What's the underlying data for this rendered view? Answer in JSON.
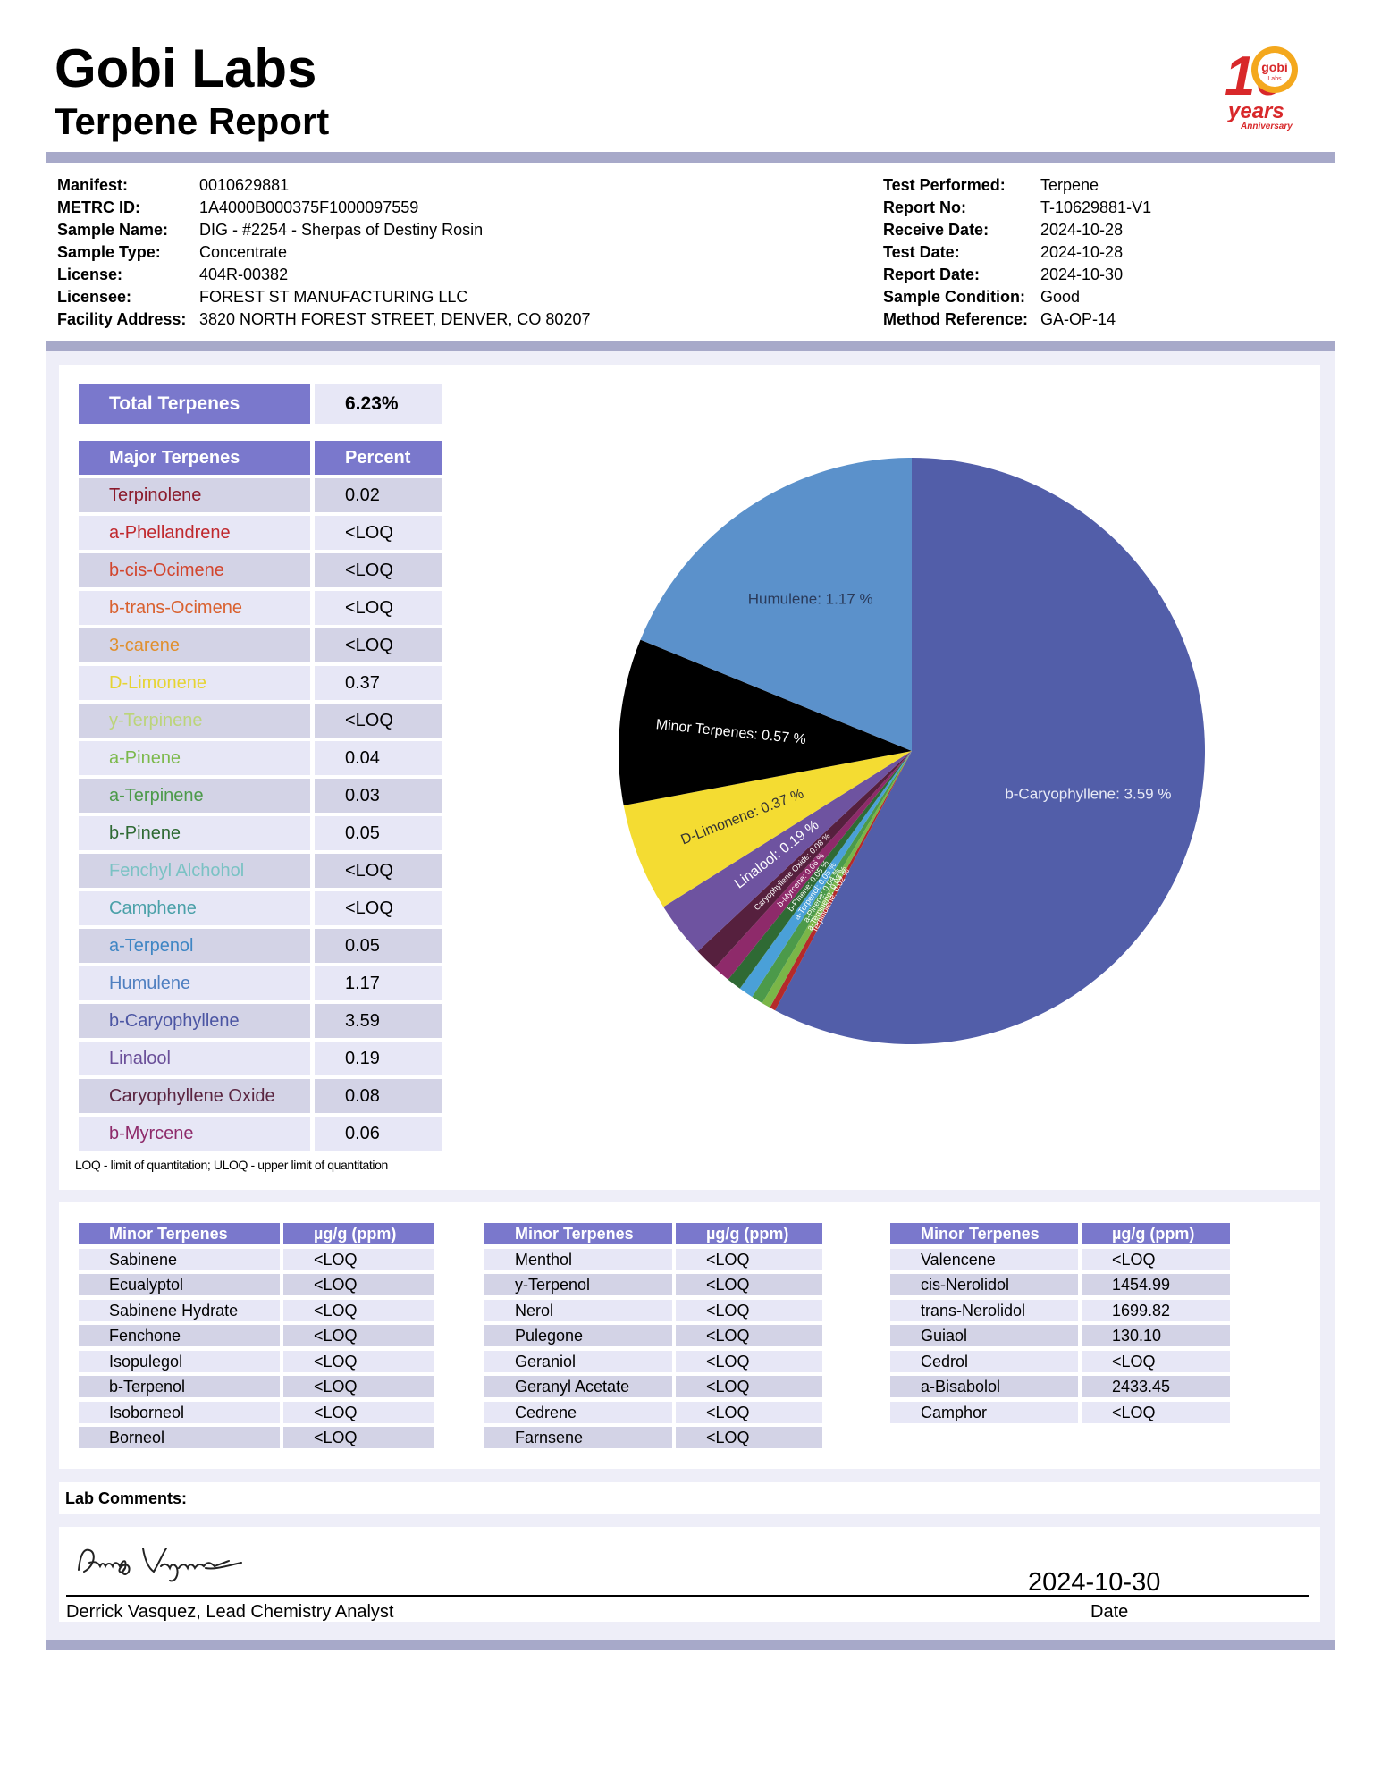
{
  "header": {
    "title": "Gobi Labs",
    "subtitle": "Terpene Report"
  },
  "logo": {
    "year_digit": "10",
    "badge_text": "gobi",
    "badge_subtext": "Labs",
    "line1": "years",
    "line2": "Anniversary"
  },
  "info_left": [
    {
      "label": "Manifest:",
      "value": "0010629881"
    },
    {
      "label": "METRC ID:",
      "value": "1A4000B000375F1000097559"
    },
    {
      "label": "Sample Name:",
      "value": "DIG - #2254 - Sherpas of Destiny Rosin"
    },
    {
      "label": "Sample Type:",
      "value": "Concentrate"
    },
    {
      "label": "License:",
      "value": "404R-00382"
    },
    {
      "label": "Licensee:",
      "value": "FOREST ST MANUFACTURING LLC"
    },
    {
      "label": "Facility Address:",
      "value": "3820 NORTH FOREST STREET, DENVER, CO 80207"
    }
  ],
  "info_right": [
    {
      "label": "Test Performed:",
      "value": "Terpene"
    },
    {
      "label": "Report No:",
      "value": "T-10629881-V1"
    },
    {
      "label": "Receive Date:",
      "value": "2024-10-28"
    },
    {
      "label": "Test Date:",
      "value": "2024-10-28"
    },
    {
      "label": "Report Date:",
      "value": "2024-10-30"
    },
    {
      "label": "Sample Condition:",
      "value": "Good"
    },
    {
      "label": "Method Reference:",
      "value": "GA-OP-14"
    }
  ],
  "total": {
    "label": "Total Terpenes",
    "value": "6.23%"
  },
  "major": {
    "header_name": "Major Terpenes",
    "header_value": "Percent",
    "rows": [
      {
        "name": "Terpinolene",
        "value": "0.02",
        "color": "#8b1a2b"
      },
      {
        "name": "a-Phellandrene",
        "value": "<LOQ",
        "color": "#c0282d"
      },
      {
        "name": "b-cis-Ocimene",
        "value": "<LOQ",
        "color": "#d2452d"
      },
      {
        "name": "b-trans-Ocimene",
        "value": "<LOQ",
        "color": "#d9612f"
      },
      {
        "name": "3-carene",
        "value": "<LOQ",
        "color": "#e0902f"
      },
      {
        "name": "D-Limonene",
        "value": "0.37",
        "color": "#e6d433"
      },
      {
        "name": "y-Terpinene",
        "value": "<LOQ",
        "color": "#bcd47a"
      },
      {
        "name": "a-Pinene",
        "value": "0.04",
        "color": "#7cb94c"
      },
      {
        "name": "a-Terpinene",
        "value": "0.03",
        "color": "#4c9a4a"
      },
      {
        "name": "b-Pinene",
        "value": "0.05",
        "color": "#2f6a34"
      },
      {
        "name": "Fenchyl Alchohol",
        "value": "<LOQ",
        "color": "#7bc2c4"
      },
      {
        "name": "Camphene",
        "value": "<LOQ",
        "color": "#4aa0a8"
      },
      {
        "name": "a-Terpenol",
        "value": "0.05",
        "color": "#3f86c4"
      },
      {
        "name": "Humulene",
        "value": "1.17",
        "color": "#4f7fc0"
      },
      {
        "name": "b-Caryophyllene",
        "value": "3.59",
        "color": "#4b55a3"
      },
      {
        "name": "Linalool",
        "value": "0.19",
        "color": "#6a4f99"
      },
      {
        "name": "Caryophyllene Oxide",
        "value": "0.08",
        "color": "#5a2440"
      },
      {
        "name": "b-Myrcene",
        "value": "0.06",
        "color": "#8e2a6a"
      }
    ]
  },
  "loq_note": "LOQ - limit of quantitation; ULOQ - upper limit of quantitation",
  "chart_data": {
    "type": "pie",
    "title": "",
    "slices": [
      {
        "label": "b-Caryophyllene: 3.59 %",
        "name": "b-Caryophyllene",
        "value": 3.59,
        "color": "#525ea9",
        "text_color": "#e8eaf6"
      },
      {
        "label": "Terpinolene: 0.02 %",
        "name": "Terpinolene",
        "value": 0.02,
        "color": "#b52a2a",
        "text_color": "#ffffff"
      },
      {
        "label": "a-Terpinene: 0.03 %",
        "name": "a-Terpinene",
        "value": 0.03,
        "color": "#7ab648",
        "text_color": "#ffffff"
      },
      {
        "label": "a-Pinene: 0.04 %",
        "name": "a-Pinene",
        "value": 0.04,
        "color": "#4c9a4a",
        "text_color": "#ffffff"
      },
      {
        "label": "a-Terpenol: 0.05 %",
        "name": "a-Terpenol",
        "value": 0.05,
        "color": "#4aa0d8",
        "text_color": "#ffffff"
      },
      {
        "label": "b-Pinene: 0.05 %",
        "name": "b-Pinene",
        "value": 0.05,
        "color": "#2f6a34",
        "text_color": "#ffffff"
      },
      {
        "label": "b-Myrcene: 0.06 %",
        "name": "b-Myrcene",
        "value": 0.06,
        "color": "#8e2a6a",
        "text_color": "#ffffff"
      },
      {
        "label": "Caryophyllene Oxide: 0.08 %",
        "name": "Caryophyllene Oxide",
        "value": 0.08,
        "color": "#56203e",
        "text_color": "#ffffff"
      },
      {
        "label": "Linalool: 0.19 %",
        "name": "Linalool",
        "value": 0.19,
        "color": "#6e53a0",
        "text_color": "#ffffff"
      },
      {
        "label": "D-Limonene: 0.37 %",
        "name": "D-Limonene",
        "value": 0.37,
        "color": "#f4dc32",
        "text_color": "#333333"
      },
      {
        "label": "Minor Terpenes: 0.57 %",
        "name": "Minor Terpenes",
        "value": 0.57,
        "color": "#000000",
        "text_color": "#ffffff"
      },
      {
        "label": "Humulene: 1.17 %",
        "name": "Humulene",
        "value": 1.17,
        "color": "#5b91cb",
        "text_color": "#2a3a5a"
      }
    ]
  },
  "minor_tables": [
    {
      "header_name": "Minor Terpenes",
      "header_value": "µg/g (ppm)",
      "rows": [
        {
          "name": "Sabinene",
          "value": "<LOQ"
        },
        {
          "name": "Ecualyptol",
          "value": "<LOQ"
        },
        {
          "name": "Sabinene Hydrate",
          "value": "<LOQ"
        },
        {
          "name": "Fenchone",
          "value": "<LOQ"
        },
        {
          "name": "Isopulegol",
          "value": "<LOQ"
        },
        {
          "name": "b-Terpenol",
          "value": "<LOQ"
        },
        {
          "name": "Isoborneol",
          "value": "<LOQ"
        },
        {
          "name": "Borneol",
          "value": "<LOQ"
        }
      ]
    },
    {
      "header_name": "Minor Terpenes",
      "header_value": "µg/g (ppm)",
      "rows": [
        {
          "name": "Menthol",
          "value": "<LOQ"
        },
        {
          "name": "y-Terpenol",
          "value": "<LOQ"
        },
        {
          "name": "Nerol",
          "value": "<LOQ"
        },
        {
          "name": "Pulegone",
          "value": "<LOQ"
        },
        {
          "name": "Geraniol",
          "value": "<LOQ"
        },
        {
          "name": "Geranyl Acetate",
          "value": "<LOQ"
        },
        {
          "name": "Cedrene",
          "value": "<LOQ"
        },
        {
          "name": "Farnsene",
          "value": "<LOQ"
        }
      ]
    },
    {
      "header_name": "Minor Terpenes",
      "header_value": "µg/g (ppm)",
      "rows": [
        {
          "name": "Valencene",
          "value": "<LOQ"
        },
        {
          "name": "cis-Nerolidol",
          "value": "1454.99"
        },
        {
          "name": "trans-Nerolidol",
          "value": "1699.82"
        },
        {
          "name": "Guiaol",
          "value": "130.10"
        },
        {
          "name": "Cedrol",
          "value": "<LOQ"
        },
        {
          "name": "a-Bisabolol",
          "value": "2433.45"
        },
        {
          "name": "Camphor",
          "value": "<LOQ"
        }
      ]
    }
  ],
  "comments": {
    "label": "Lab Comments:"
  },
  "signature": {
    "signer": "Derrick Vasquez, Lead Chemistry Analyst",
    "date": "2024-10-30",
    "date_label": "Date",
    "handwritten": "Derrick Vasquez"
  },
  "colors": {
    "header_purple": "#7a78cc",
    "row_dark": "#d3d3e6",
    "row_light": "#e7e7f6",
    "bar": "#a7a9c9",
    "panel": "#eeeef8"
  }
}
